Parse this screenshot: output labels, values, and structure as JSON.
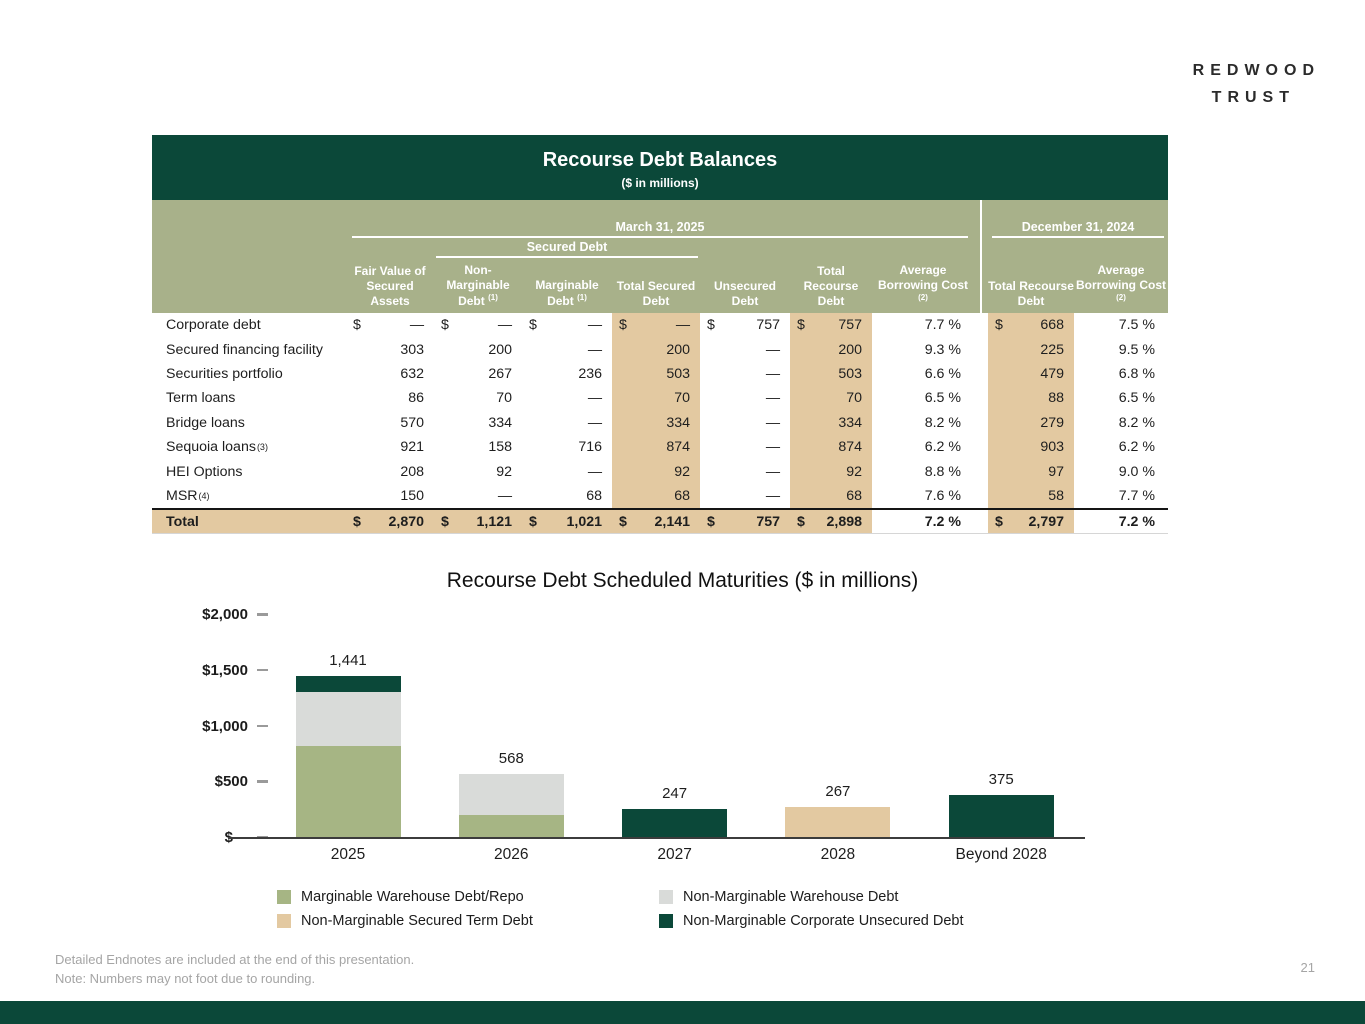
{
  "logo": {
    "line1": "REDWOOD",
    "line2": "TRUST"
  },
  "footer": {
    "endnote": "Detailed Endnotes are included at the end of this presentation.",
    "note": "Note: Numbers may not foot due to rounding.",
    "page_number": "21"
  },
  "colors": {
    "brand_dark_green": "#0b4839",
    "header_sage": "#a8b18a",
    "highlight_tan": "#e3c9a1",
    "bar_gray": "#d9dbd9",
    "bar_green": "#a6b584",
    "footnote_gray": "#a5a5a5"
  },
  "table": {
    "title": "Recourse Debt Balances",
    "subtitle": "($ in millions)",
    "groups": {
      "march": "March 31, 2025",
      "secured": "Secured Debt",
      "december": "December 31, 2024"
    },
    "columns": [
      {
        "label": "Fair Value of Secured Assets",
        "sup": ""
      },
      {
        "label": "Non-Marginable Debt",
        "sup": "(1)"
      },
      {
        "label": "Marginable Debt",
        "sup": "(1)"
      },
      {
        "label": "Total Secured Debt",
        "sup": ""
      },
      {
        "label": "Unsecured Debt",
        "sup": ""
      },
      {
        "label": "Total Recourse Debt",
        "sup": ""
      },
      {
        "label": "Average Borrowing Cost",
        "sup": "(2)"
      },
      {
        "label": "Total Recourse Debt",
        "sup": ""
      },
      {
        "label": "Average Borrowing Cost",
        "sup": "(2)"
      }
    ],
    "rows": [
      {
        "label": "Corporate debt",
        "sup": "",
        "dollar": true,
        "fair": "—",
        "non_marginable": "—",
        "marginable": "—",
        "total_secured": "—",
        "unsecured": "757",
        "total_recourse": "757",
        "avg_cost": "7.7 %",
        "dec_total_recourse": "668",
        "dec_avg_cost": "7.5 %"
      },
      {
        "label": "Secured financing facility",
        "sup": "",
        "dollar": false,
        "fair": "303",
        "non_marginable": "200",
        "marginable": "—",
        "total_secured": "200",
        "unsecured": "—",
        "total_recourse": "200",
        "avg_cost": "9.3 %",
        "dec_total_recourse": "225",
        "dec_avg_cost": "9.5 %"
      },
      {
        "label": "Securities portfolio",
        "sup": "",
        "dollar": false,
        "fair": "632",
        "non_marginable": "267",
        "marginable": "236",
        "total_secured": "503",
        "unsecured": "—",
        "total_recourse": "503",
        "avg_cost": "6.6 %",
        "dec_total_recourse": "479",
        "dec_avg_cost": "6.8 %"
      },
      {
        "label": "Term loans",
        "sup": "",
        "dollar": false,
        "fair": "86",
        "non_marginable": "70",
        "marginable": "—",
        "total_secured": "70",
        "unsecured": "—",
        "total_recourse": "70",
        "avg_cost": "6.5 %",
        "dec_total_recourse": "88",
        "dec_avg_cost": "6.5 %"
      },
      {
        "label": "Bridge loans",
        "sup": "",
        "dollar": false,
        "fair": "570",
        "non_marginable": "334",
        "marginable": "—",
        "total_secured": "334",
        "unsecured": "—",
        "total_recourse": "334",
        "avg_cost": "8.2 %",
        "dec_total_recourse": "279",
        "dec_avg_cost": "8.2 %"
      },
      {
        "label": "Sequoia loans",
        "sup": "(3)",
        "dollar": false,
        "fair": "921",
        "non_marginable": "158",
        "marginable": "716",
        "total_secured": "874",
        "unsecured": "—",
        "total_recourse": "874",
        "avg_cost": "6.2 %",
        "dec_total_recourse": "903",
        "dec_avg_cost": "6.2 %"
      },
      {
        "label": "HEI Options",
        "sup": "",
        "dollar": false,
        "fair": "208",
        "non_marginable": "92",
        "marginable": "—",
        "total_secured": "92",
        "unsecured": "—",
        "total_recourse": "92",
        "avg_cost": "8.8 %",
        "dec_total_recourse": "97",
        "dec_avg_cost": "9.0 %"
      },
      {
        "label": "MSR",
        "sup": "(4)",
        "dollar": false,
        "fair": "150",
        "non_marginable": "—",
        "marginable": "68",
        "total_secured": "68",
        "unsecured": "—",
        "total_recourse": "68",
        "avg_cost": "7.6 %",
        "dec_total_recourse": "58",
        "dec_avg_cost": "7.7 %"
      }
    ],
    "total_row": {
      "label": "Total",
      "sup": "",
      "dollar": true,
      "fair": "2,870",
      "non_marginable": "1,121",
      "marginable": "1,021",
      "total_secured": "2,141",
      "unsecured": "757",
      "total_recourse": "2,898",
      "avg_cost": "7.2 %",
      "dec_total_recourse": "2,797",
      "dec_avg_cost": "7.2 %"
    }
  },
  "chart_data": {
    "type": "bar",
    "stacked": true,
    "title": "Recourse Debt Scheduled Maturities ($ in millions)",
    "categories": [
      "2025",
      "2026",
      "2027",
      "2028",
      "Beyond 2028"
    ],
    "bar_total_labels": [
      "1,441",
      "568",
      "247",
      "267",
      "375"
    ],
    "bar_totals": [
      1441,
      568,
      247,
      267,
      375
    ],
    "series": [
      {
        "name": "Marginable Warehouse Debt/Repo",
        "color": "#a6b584",
        "values": [
          820,
          195,
          0,
          0,
          0
        ]
      },
      {
        "name": "Non-Marginable Warehouse Debt",
        "color": "#d9dbd9",
        "values": [
          480,
          373,
          0,
          0,
          0
        ]
      },
      {
        "name": "Non-Marginable Secured Term Debt",
        "color": "#e3c9a1",
        "values": [
          0,
          0,
          0,
          267,
          0
        ]
      },
      {
        "name": "Non-Marginable Corporate Unsecured Debt",
        "color": "#0b4839",
        "values": [
          141,
          0,
          247,
          0,
          375
        ]
      }
    ],
    "y_axis": {
      "ticks": [
        {
          "label": "$2,000",
          "value": 2000
        },
        {
          "label": "$1,500",
          "value": 1500
        },
        {
          "label": "$1,000",
          "value": 1000
        },
        {
          "label": "$500",
          "value": 500
        },
        {
          "label": "$—",
          "value": 0
        }
      ],
      "max": 2000
    },
    "legend_position": "bottom",
    "gridlines": false
  }
}
